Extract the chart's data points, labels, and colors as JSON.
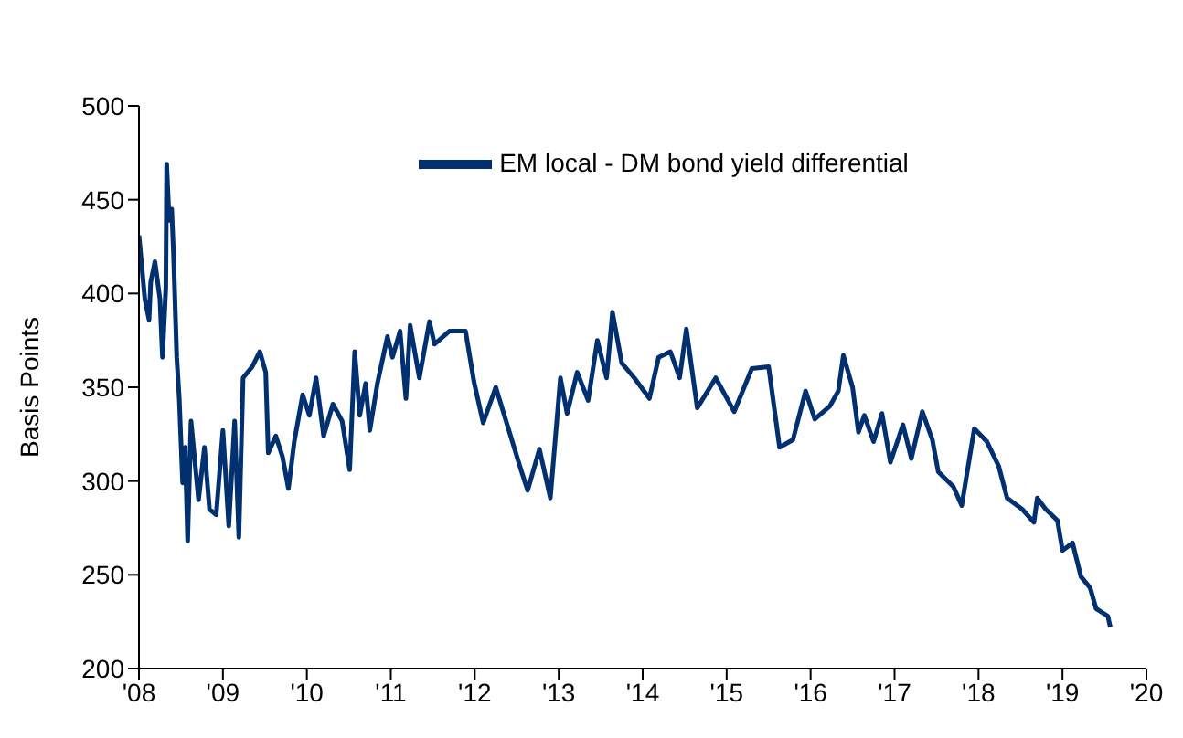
{
  "chart_data": {
    "type": "line",
    "ylabel": "Basis Points",
    "legend": "top",
    "grid": false,
    "marker": "none",
    "line_style": "solid",
    "xlim": [
      2008,
      2020
    ],
    "xticks": [
      {
        "value": 2008,
        "label": "'08"
      },
      {
        "value": 2009,
        "label": "'09"
      },
      {
        "value": 2010,
        "label": "'10"
      },
      {
        "value": 2011,
        "label": "'11"
      },
      {
        "value": 2012,
        "label": "'12"
      },
      {
        "value": 2013,
        "label": "'13"
      },
      {
        "value": 2014,
        "label": "'14"
      },
      {
        "value": 2015,
        "label": "'15"
      },
      {
        "value": 2016,
        "label": "'16"
      },
      {
        "value": 2017,
        "label": "'17"
      },
      {
        "value": 2018,
        "label": "'18"
      },
      {
        "value": 2019,
        "label": "'19"
      },
      {
        "value": 2020,
        "label": "'20"
      }
    ],
    "ylim": [
      200,
      500
    ],
    "yticks": [
      200,
      250,
      300,
      350,
      400,
      450,
      500
    ],
    "x": [
      2008.0,
      2008.07,
      2008.12,
      2008.14,
      2008.19,
      2008.25,
      2008.28,
      2008.32,
      2008.33,
      2008.36,
      2008.39,
      2008.41,
      2008.45,
      2008.48,
      2008.52,
      2008.55,
      2008.58,
      2008.62,
      2008.65,
      2008.71,
      2008.78,
      2008.84,
      2008.92,
      2009.0,
      2009.07,
      2009.14,
      2009.19,
      2009.24,
      2009.35,
      2009.44,
      2009.51,
      2009.54,
      2009.63,
      2009.71,
      2009.78,
      2009.85,
      2009.95,
      2010.03,
      2010.11,
      2010.2,
      2010.31,
      2010.42,
      2010.51,
      2010.57,
      2010.63,
      2010.7,
      2010.75,
      2010.84,
      2010.96,
      2011.02,
      2011.11,
      2011.18,
      2011.23,
      2011.34,
      2011.46,
      2011.52,
      2011.7,
      2011.89,
      2011.99,
      2012.1,
      2012.25,
      2012.4,
      2012.55,
      2012.63,
      2012.77,
      2012.9,
      2013.02,
      2013.1,
      2013.22,
      2013.35,
      2013.46,
      2013.57,
      2013.64,
      2013.75,
      2013.9,
      2014.08,
      2014.19,
      2014.33,
      2014.44,
      2014.52,
      2014.65,
      2014.87,
      2015.09,
      2015.3,
      2015.5,
      2015.63,
      2015.79,
      2015.94,
      2016.05,
      2016.23,
      2016.33,
      2016.39,
      2016.5,
      2016.57,
      2016.64,
      2016.75,
      2016.85,
      2016.95,
      2017.1,
      2017.2,
      2017.33,
      2017.45,
      2017.52,
      2017.7,
      2017.8,
      2017.95,
      2018.1,
      2018.24,
      2018.34,
      2018.52,
      2018.66,
      2018.7,
      2018.8,
      2018.94,
      2019.0,
      2019.12,
      2019.22,
      2019.33,
      2019.4,
      2019.54,
      2019.57
    ],
    "series": [
      {
        "name": "EM local - DM bond yield differential",
        "color": "#003070",
        "values": [
          431,
          397,
          386,
          406,
          417,
          397,
          366,
          403,
          469,
          439,
          445,
          423,
          366,
          344,
          299,
          318,
          268,
          332,
          318,
          290,
          318,
          285,
          282,
          327,
          276,
          332,
          270,
          355,
          361,
          369,
          358,
          315,
          324,
          313,
          296,
          321,
          346,
          335,
          355,
          324,
          341,
          332,
          306,
          369,
          335,
          352,
          327,
          352,
          377,
          366,
          380,
          344,
          383,
          355,
          385,
          373,
          380,
          380,
          353,
          331,
          350,
          328,
          306,
          295,
          317,
          291,
          355,
          336,
          358,
          343,
          375,
          355,
          390,
          363,
          355,
          344,
          366,
          369,
          355,
          381,
          339,
          355,
          337,
          360,
          361,
          318,
          322,
          348,
          333,
          340,
          348,
          367,
          350,
          326,
          335,
          321,
          336,
          310,
          330,
          312,
          337,
          322,
          305,
          297,
          287,
          328,
          321,
          308,
          291,
          285,
          278,
          291,
          285,
          279,
          263,
          267,
          249,
          243,
          232,
          228,
          222
        ]
      }
    ]
  }
}
